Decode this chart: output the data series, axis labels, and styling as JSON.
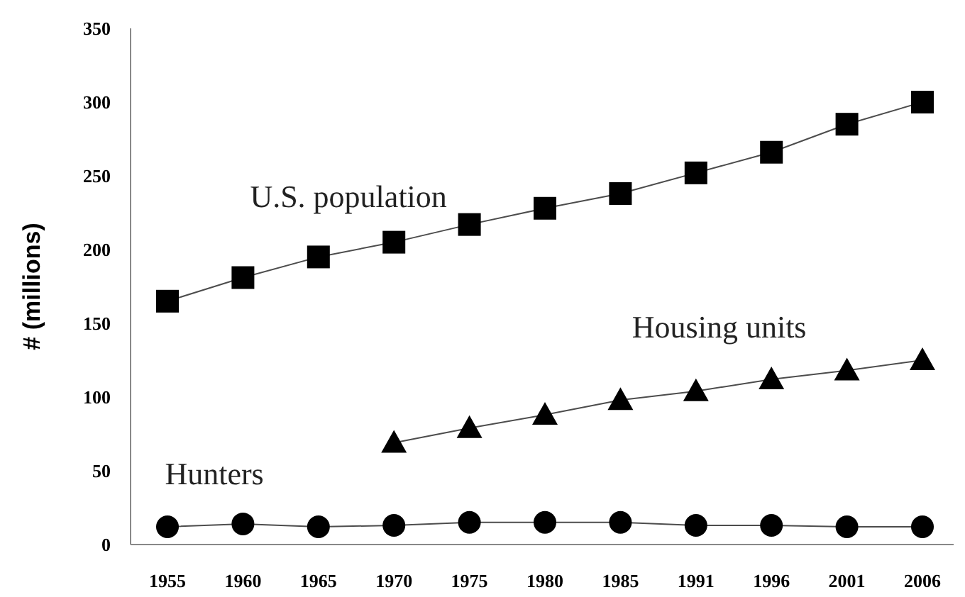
{
  "chart_data": {
    "type": "line",
    "ylabel": "# (millions)",
    "categories": [
      "1955",
      "1960",
      "1965",
      "1970",
      "1975",
      "1980",
      "1985",
      "1991",
      "1996",
      "2001",
      "2006"
    ],
    "ylim": [
      0,
      350
    ],
    "yticks": [
      0,
      50,
      100,
      150,
      200,
      250,
      300,
      350
    ],
    "series": [
      {
        "name": "U.S. population",
        "color": "#000000",
        "marker": "square",
        "values": [
          165,
          181,
          195,
          205,
          217,
          228,
          238,
          252,
          266,
          285,
          300
        ]
      },
      {
        "name": "Housing units",
        "color": "#000000",
        "marker": "triangle",
        "values": [
          null,
          null,
          null,
          69,
          79,
          88,
          98,
          104,
          112,
          118,
          125
        ]
      },
      {
        "name": "Hunters",
        "color": "#000000",
        "marker": "circle",
        "values": [
          12,
          14,
          12,
          13,
          15,
          15,
          15,
          13,
          13,
          12,
          12
        ]
      }
    ]
  }
}
